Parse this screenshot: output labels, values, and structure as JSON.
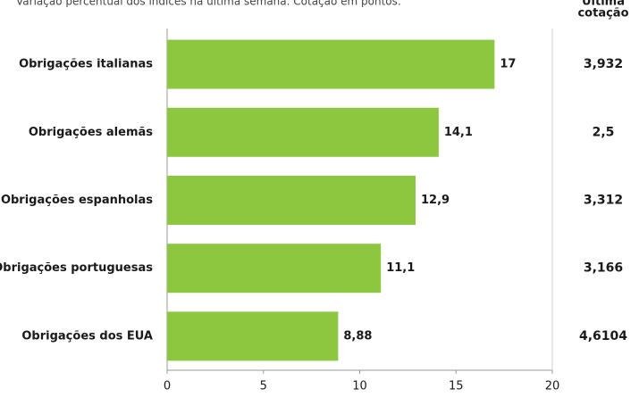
{
  "chart_data": {
    "type": "bar",
    "orientation": "horizontal",
    "subtitle": "Variação percentual dos índices na última semana. Cotação em pontos.",
    "categories": [
      "Obrigações italianas",
      "Obrigações alemãs",
      "Obrigações espanholas",
      "Obrigações portuguesas",
      "Obrigações dos EUA"
    ],
    "values": [
      17,
      14.1,
      12.9,
      11.1,
      8.88
    ],
    "value_labels": [
      "17",
      "14,1",
      "12,9",
      "11,1",
      "8,88"
    ],
    "color": "#8dc63f",
    "xlim": [
      0,
      20
    ],
    "xticks": [
      0,
      5,
      10,
      15,
      20
    ],
    "quote_header": [
      "Última",
      "cotação"
    ],
    "quotes": [
      "3,932",
      "2,5",
      "3,312",
      "3,166",
      "4,6104"
    ]
  }
}
